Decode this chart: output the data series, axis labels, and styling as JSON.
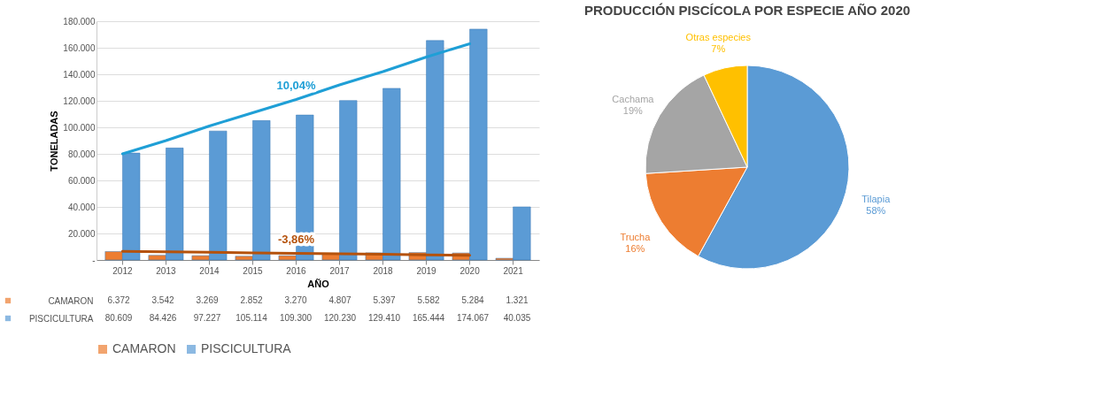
{
  "chart_data": [
    {
      "type": "bar",
      "xlabel": "AÑO",
      "ylabel": "TONELADAS",
      "categories": [
        "2012",
        "2013",
        "2014",
        "2015",
        "2016",
        "2017",
        "2018",
        "2019",
        "2020",
        "2021"
      ],
      "series": [
        {
          "name": "CAMARON",
          "color": "#ed7d31",
          "values": [
            6372,
            3542,
            3269,
            2852,
            3270,
            4807,
            5397,
            5582,
            5284,
            1321
          ],
          "value_labels": [
            "6.372",
            "3.542",
            "3.269",
            "2.852",
            "3.270",
            "4.807",
            "5.397",
            "5.582",
            "5.284",
            "1.321"
          ]
        },
        {
          "name": "PISCICULTURA",
          "color": "#5b9bd5",
          "values": [
            80609,
            84426,
            97227,
            105114,
            109300,
            120230,
            129410,
            165444,
            174067,
            40035
          ],
          "value_labels": [
            "80.609",
            "84.426",
            "97.227",
            "105.114",
            "109.300",
            "120.230",
            "129.410",
            "165.444",
            "174.067",
            "40.035"
          ]
        },
        {
          "type": "line",
          "name": "10,04%",
          "color": "#1f9fd6",
          "values": [
            80000,
            90000,
            101000,
            111000,
            121000,
            132000,
            142000,
            153000,
            163000,
            null
          ]
        },
        {
          "type": "line",
          "name": "-3,86%",
          "color": "#b5520c",
          "values": [
            6500,
            6100,
            5800,
            5400,
            5000,
            4600,
            4300,
            3900,
            3500,
            null
          ]
        }
      ],
      "ylim": [
        0,
        180000
      ],
      "yticks": [
        {
          "value": 0,
          "label": "-"
        },
        {
          "value": 20000,
          "label": "20.000"
        },
        {
          "value": 40000,
          "label": "40.000"
        },
        {
          "value": 60000,
          "label": "60.000"
        },
        {
          "value": 80000,
          "label": "80.000"
        },
        {
          "value": 100000,
          "label": "100.000"
        },
        {
          "value": 120000,
          "label": "120.000"
        },
        {
          "value": 140000,
          "label": "140.000"
        },
        {
          "value": 160000,
          "label": "160.000"
        },
        {
          "value": 180000,
          "label": "180.000"
        }
      ],
      "grid": "y",
      "legend": "bottom"
    },
    {
      "type": "pie",
      "title": "PRODUCCIÓN PISCÍCOLA POR ESPECIE AÑO 2020",
      "categories": [
        "Tilapia",
        "Trucha",
        "Cachama",
        "Otras especies"
      ],
      "values": [
        58,
        16,
        19,
        7
      ],
      "value_labels": [
        "58%",
        "16%",
        "19%",
        "7%"
      ],
      "colors": [
        "#5b9bd5",
        "#ed7d31",
        "#a5a5a5",
        "#ffc000"
      ]
    }
  ]
}
